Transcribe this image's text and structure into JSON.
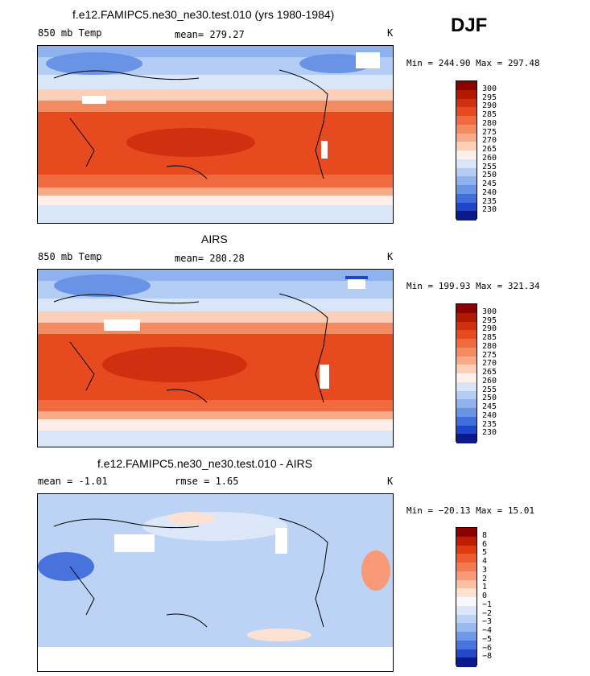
{
  "season": "DJF",
  "panels": [
    {
      "id": "model",
      "title": "f.e12.FAMIPC5.ne30_ne30.test.010 (yrs 1980-1984)",
      "left_label": "850 mb Temp",
      "middle_label": "mean= 279.27",
      "units": "K",
      "minmax": "Min = 244.90 Max = 297.48",
      "mean": 279.27,
      "min": 244.9,
      "max": 297.48,
      "colorbar": {
        "labels": [
          "300",
          "295",
          "290",
          "285",
          "280",
          "275",
          "270",
          "265",
          "260",
          "255",
          "250",
          "245",
          "240",
          "235",
          "230"
        ],
        "colors": [
          "#8b0000",
          "#b21a00",
          "#d03010",
          "#e84a20",
          "#f06a40",
          "#f48a60",
          "#f8aa88",
          "#fcd0b8",
          "#fdf0ea",
          "#d8e6f8",
          "#b4cdf4",
          "#8fb2ee",
          "#6994e6",
          "#3f6edc",
          "#1f45c8",
          "#0a1a8a"
        ]
      }
    },
    {
      "id": "obs",
      "title": "AIRS",
      "left_label": "850 mb Temp",
      "middle_label": "mean= 280.28",
      "units": "K",
      "minmax": "Min = 199.93 Max = 321.34",
      "mean": 280.28,
      "min": 199.93,
      "max": 321.34,
      "colorbar": {
        "labels": [
          "300",
          "295",
          "290",
          "285",
          "280",
          "275",
          "270",
          "265",
          "260",
          "255",
          "250",
          "245",
          "240",
          "235",
          "230"
        ],
        "colors": [
          "#8b0000",
          "#b21a00",
          "#d03010",
          "#e84a20",
          "#f06a40",
          "#f48a60",
          "#f8aa88",
          "#fcd0b8",
          "#fdf0ea",
          "#d8e6f8",
          "#b4cdf4",
          "#8fb2ee",
          "#6994e6",
          "#3f6edc",
          "#1f45c8",
          "#0a1a8a"
        ]
      }
    },
    {
      "id": "diff",
      "title": "f.e12.FAMIPC5.ne30_ne30.test.010 - AIRS",
      "left_label": "mean =   -1.01",
      "middle_label": "rmse =    1.65",
      "units": "K",
      "minmax": "Min = −20.13 Max =  15.01",
      "mean": -1.01,
      "rmse": 1.65,
      "min": -20.13,
      "max": 15.01,
      "colorbar": {
        "labels": [
          "8",
          "6",
          "5",
          "4",
          "3",
          "2",
          "1",
          "0",
          "−1",
          "−2",
          "−3",
          "−4",
          "−5",
          "−6",
          "−8"
        ],
        "colors": [
          "#8b0000",
          "#c01e00",
          "#e03a10",
          "#ee5a30",
          "#f47a50",
          "#f89a78",
          "#fbbfa2",
          "#fde2d2",
          "#f8f8fc",
          "#dce8fa",
          "#bcd3f6",
          "#98baf0",
          "#7098e8",
          "#4872dc",
          "#2448c6",
          "#0a1a8a"
        ]
      }
    }
  ],
  "chart_data": [
    {
      "type": "heatmap",
      "title": "f.e12.FAMIPC5.ne30_ne30.test.010 (yrs 1980-1984)",
      "variable": "850 mb Temp",
      "units": "K",
      "season": "DJF",
      "mean": 279.27,
      "min": 244.9,
      "max": 297.48,
      "contour_levels": [
        230,
        235,
        240,
        245,
        250,
        255,
        260,
        265,
        270,
        275,
        280,
        285,
        290,
        295,
        300
      ]
    },
    {
      "type": "heatmap",
      "title": "AIRS",
      "variable": "850 mb Temp",
      "units": "K",
      "season": "DJF",
      "mean": 280.28,
      "min": 199.93,
      "max": 321.34,
      "contour_levels": [
        230,
        235,
        240,
        245,
        250,
        255,
        260,
        265,
        270,
        275,
        280,
        285,
        290,
        295,
        300
      ]
    },
    {
      "type": "heatmap",
      "title": "f.e12.FAMIPC5.ne30_ne30.test.010 - AIRS",
      "units": "K",
      "season": "DJF",
      "mean": -1.01,
      "rmse": 1.65,
      "min": -20.13,
      "max": 15.01,
      "contour_levels": [
        -8,
        -6,
        -5,
        -4,
        -3,
        -2,
        -1,
        0,
        1,
        2,
        3,
        4,
        5,
        6,
        8
      ]
    }
  ]
}
